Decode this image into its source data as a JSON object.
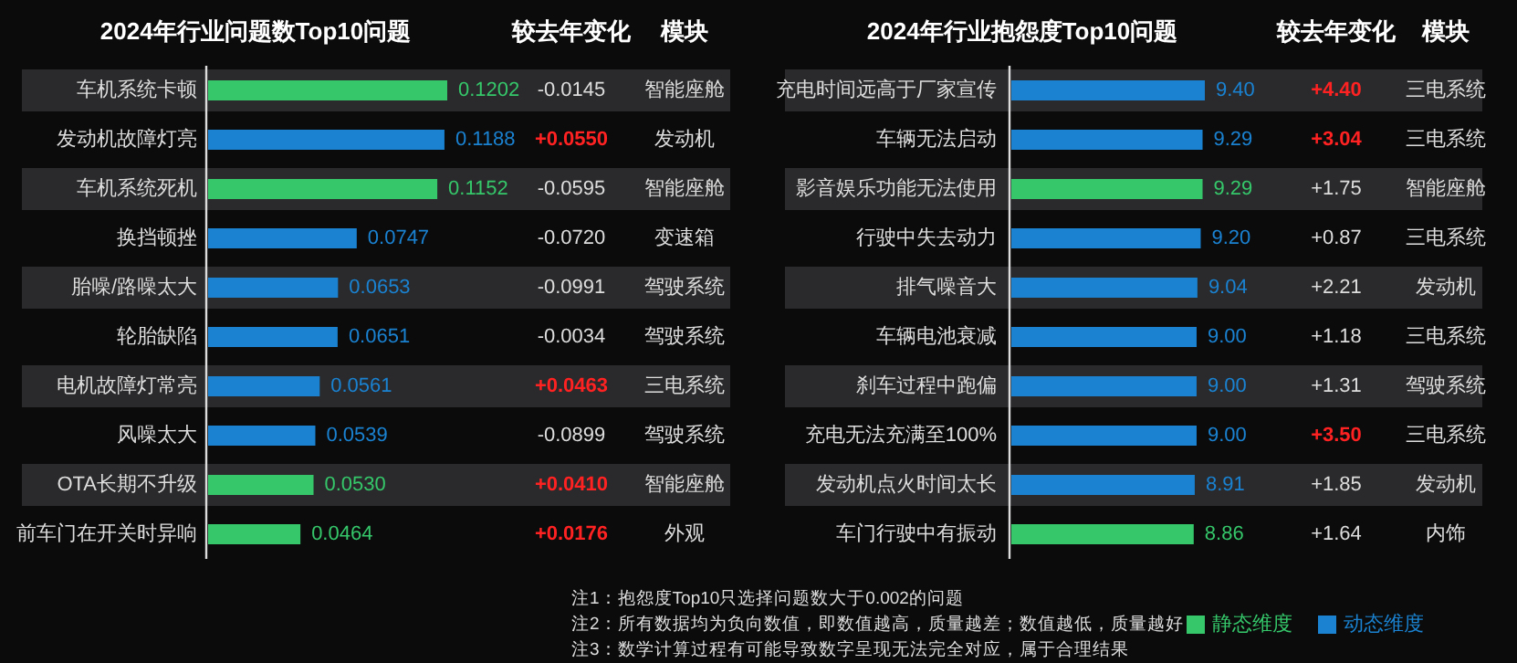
{
  "chart_data": [
    {
      "type": "bar",
      "orientation": "horizontal",
      "title": "2024年行业问题数Top10问题",
      "categories": [
        "车机系统卡顿",
        "发动机故障灯亮",
        "车机系统死机",
        "换挡顿挫",
        "胎噪/路噪太大",
        "轮胎缺陷",
        "电机故障灯常亮",
        "风噪太大",
        "OTA长期不升级",
        "前车门在开关时异响"
      ],
      "legend": "bottom right",
      "series": [
        {
          "name": "静态维度",
          "color": "#35c76a",
          "values": [
            0.1202,
            null,
            0.1152,
            null,
            null,
            null,
            null,
            null,
            0.053,
            0.0464
          ],
          "value_labels": [
            "0.1202",
            null,
            "0.1152",
            null,
            null,
            null,
            null,
            null,
            "0.0530",
            "0.0464"
          ]
        },
        {
          "name": "动态维度",
          "color": "#1a82d0",
          "values": [
            null,
            0.1188,
            null,
            0.0747,
            0.0653,
            0.0651,
            0.0561,
            0.0539,
            null,
            null
          ],
          "value_labels": [
            null,
            "0.1188",
            null,
            "0.0747",
            "0.0653",
            "0.0651",
            "0.0561",
            "0.0539",
            null,
            null
          ]
        }
      ]
    },
    {
      "type": "other",
      "title": "较去年变化",
      "annotations": [
        "-0.0145",
        "+0.0550",
        "-0.0595",
        "-0.0720",
        "-0.0991",
        "-0.0034",
        "+0.0463",
        "-0.0899",
        "+0.0410",
        "+0.0176"
      ],
      "colors": [
        "#dddddd",
        "#ff2222",
        "#dddddd",
        "#dddddd",
        "#dddddd",
        "#dddddd",
        "#ff2222",
        "#dddddd",
        "#ff2222",
        "#ff2222"
      ]
    },
    {
      "type": "other",
      "title": "模块",
      "annotations": [
        "智能座舱",
        "发动机",
        "智能座舱",
        "变速箱",
        "驾驶系统",
        "驾驶系统",
        "三电系统",
        "驾驶系统",
        "智能座舱",
        "外观"
      ]
    },
    {
      "type": "bar",
      "orientation": "horizontal",
      "title": "2024年行业抱怨度Top10问题",
      "categories": [
        "充电时间远高于厂家宣传",
        "车辆无法启动",
        "影音娱乐功能无法使用",
        "行驶中失去动力",
        "排气噪音大",
        "车辆电池衰减",
        "刹车过程中跑偏",
        "充电无法充满至100%",
        "发动机点火时间太长",
        "车门行驶中有振动"
      ],
      "series": [
        {
          "color": "#35c76a",
          "values": [
            null,
            null,
            9.29,
            null,
            null,
            null,
            null,
            null,
            null,
            8.86
          ],
          "value_labels": [
            null,
            null,
            "9.29",
            null,
            null,
            null,
            null,
            null,
            null,
            "8.86"
          ]
        },
        {
          "color": "#1a82d0",
          "values": [
            9.4,
            9.29,
            null,
            9.2,
            9.04,
            9.0,
            9.0,
            9.0,
            8.91,
            null
          ],
          "value_labels": [
            "9.40",
            "9.29",
            null,
            "9.20",
            "9.04",
            "9.00",
            "9.00",
            "9.00",
            "8.91",
            null
          ]
        }
      ]
    },
    {
      "type": "other",
      "title": "较去年变化",
      "annotations": [
        "+4.40",
        "+3.04",
        "+1.75",
        "+0.87",
        "+2.21",
        "+1.18",
        "+1.31",
        "+3.50",
        "+1.85",
        "+1.64"
      ],
      "colors": [
        "#ff2222",
        "#ff2222",
        "#dddddd",
        "#dddddd",
        "#dddddd",
        "#dddddd",
        "#dddddd",
        "#ff2222",
        "#dddddd",
        "#dddddd"
      ]
    },
    {
      "type": "other",
      "title": "模块",
      "annotations": [
        "三电系统",
        "三电系统",
        "智能座舱",
        "三电系统",
        "发动机",
        "三电系统",
        "驾驶系统",
        "三电系统",
        "发动机",
        "内饰"
      ]
    },
    {
      "type": "other",
      "annotations": [
        "注1：抱怨度Top10只选择问题数大于0.002的问题",
        "注2：所有数据均为负向数值，即数值越高，质量越差；数值越低，质量越好",
        "注3：数学计算过程有可能导致数字呈现无法完全对应，属于合理结果"
      ]
    }
  ]
}
